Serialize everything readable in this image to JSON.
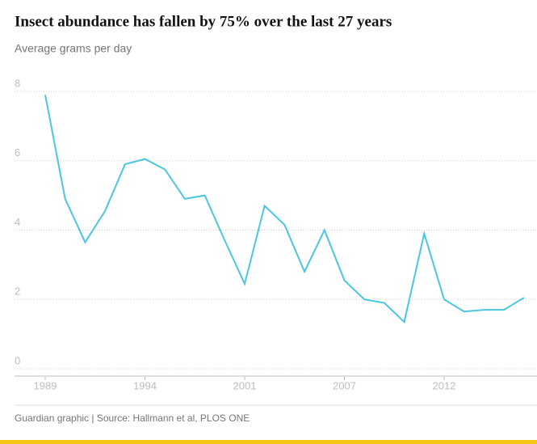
{
  "chart_data": {
    "type": "line",
    "title": "Insect abundance has fallen by 75% over the last 27 years",
    "subtitle": "Average grams per day",
    "source": "Guardian graphic | Source: Hallmann et al, PLOS ONE",
    "categories": [
      "1989",
      null,
      null,
      null,
      null,
      "1994",
      null,
      null,
      null,
      null,
      "2001",
      null,
      null,
      null,
      null,
      "2007",
      null,
      null,
      null,
      null,
      "2012",
      null,
      null,
      null,
      null
    ],
    "series": [
      {
        "name": "Average grams per day",
        "color": "#4bc6df",
        "values": [
          7.9,
          4.9,
          3.65,
          4.55,
          5.9,
          6.05,
          5.75,
          4.9,
          5.0,
          3.7,
          2.45,
          4.7,
          4.15,
          2.8,
          4.0,
          2.55,
          2.0,
          1.9,
          1.35,
          3.9,
          2.0,
          1.65,
          1.7,
          1.7,
          2.05
        ]
      }
    ],
    "ylim": [
      0,
      8
    ],
    "yticks": [
      0,
      2,
      4,
      6,
      8
    ],
    "grid": true
  }
}
